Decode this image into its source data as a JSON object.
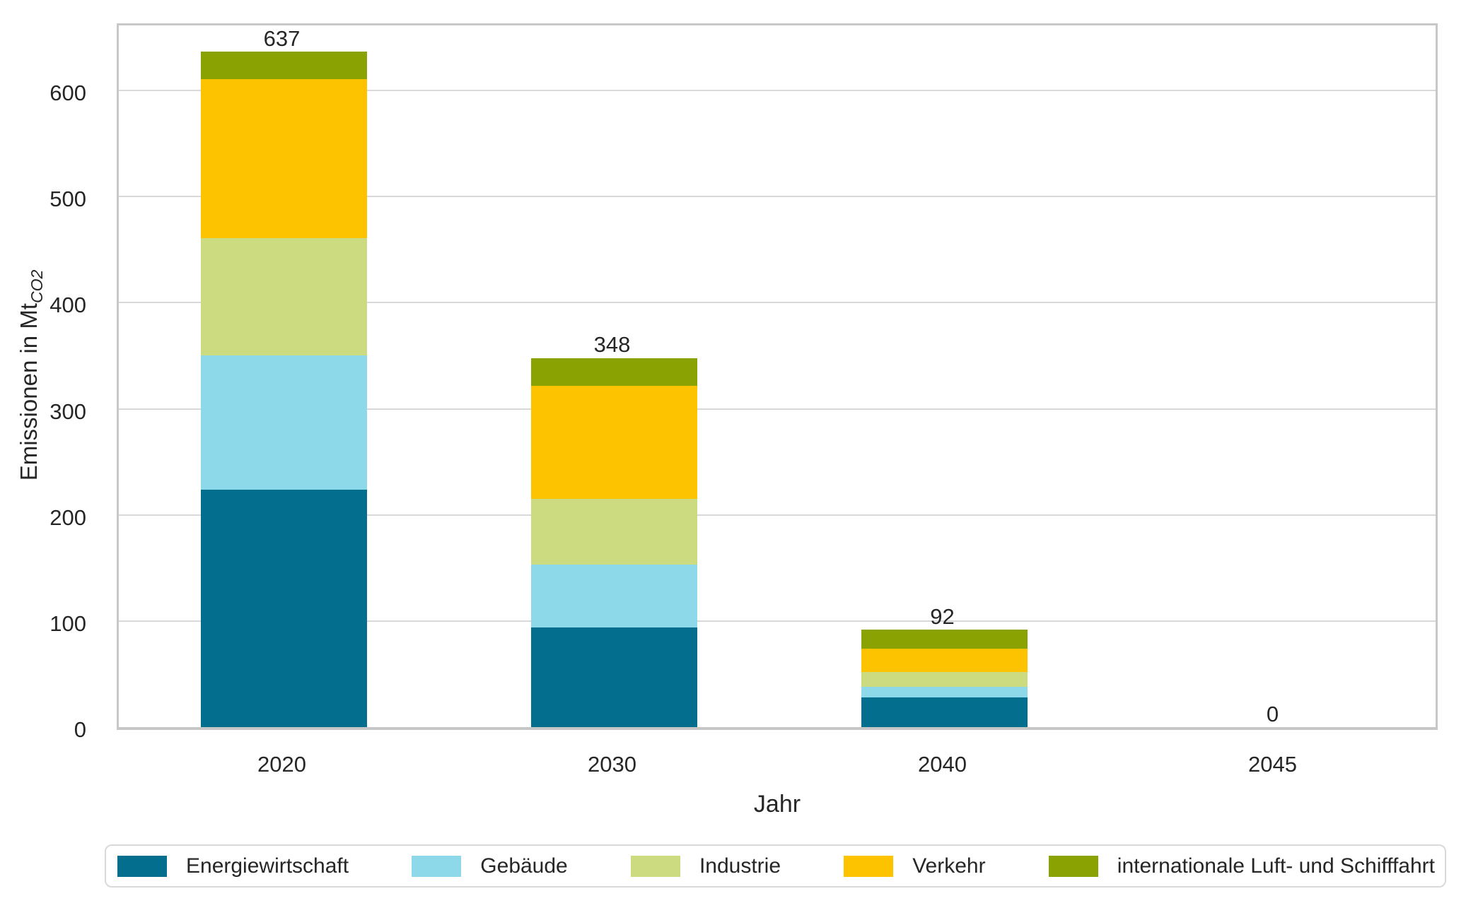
{
  "chart_data": {
    "type": "bar",
    "subtype": "stacked",
    "title": "",
    "xlabel": "Jahr",
    "ylabel": "Emissionen in Mt",
    "ylabel_subscript": "CO2",
    "categories": [
      "2020",
      "2030",
      "2040",
      "2045"
    ],
    "series": [
      {
        "name": "Energiewirtschaft",
        "color": "#046e8f",
        "values": [
          224,
          94,
          28,
          0
        ]
      },
      {
        "name": "Gebäude",
        "color": "#8dd9ea",
        "values": [
          126,
          59,
          10,
          0
        ]
      },
      {
        "name": "Industrie",
        "color": "#cddb80",
        "values": [
          111,
          62,
          14,
          0
        ]
      },
      {
        "name": "Verkehr",
        "color": "#fdc300",
        "values": [
          150,
          107,
          22,
          0
        ]
      },
      {
        "name": "internationale Luft- und Schifffahrt",
        "color": "#8aa303",
        "values": [
          26,
          26,
          18,
          0
        ]
      }
    ],
    "totals": [
      637,
      348,
      92,
      0
    ],
    "ylim": [
      0,
      666
    ],
    "yticks": [
      0,
      100,
      200,
      300,
      400,
      500,
      600
    ],
    "grid": "horizontal",
    "legend_position": "bottom",
    "colors": {
      "text": "#262626",
      "gridline": "#d9d9d9",
      "frame": "#c8c8c8",
      "background": "#ffffff"
    }
  }
}
